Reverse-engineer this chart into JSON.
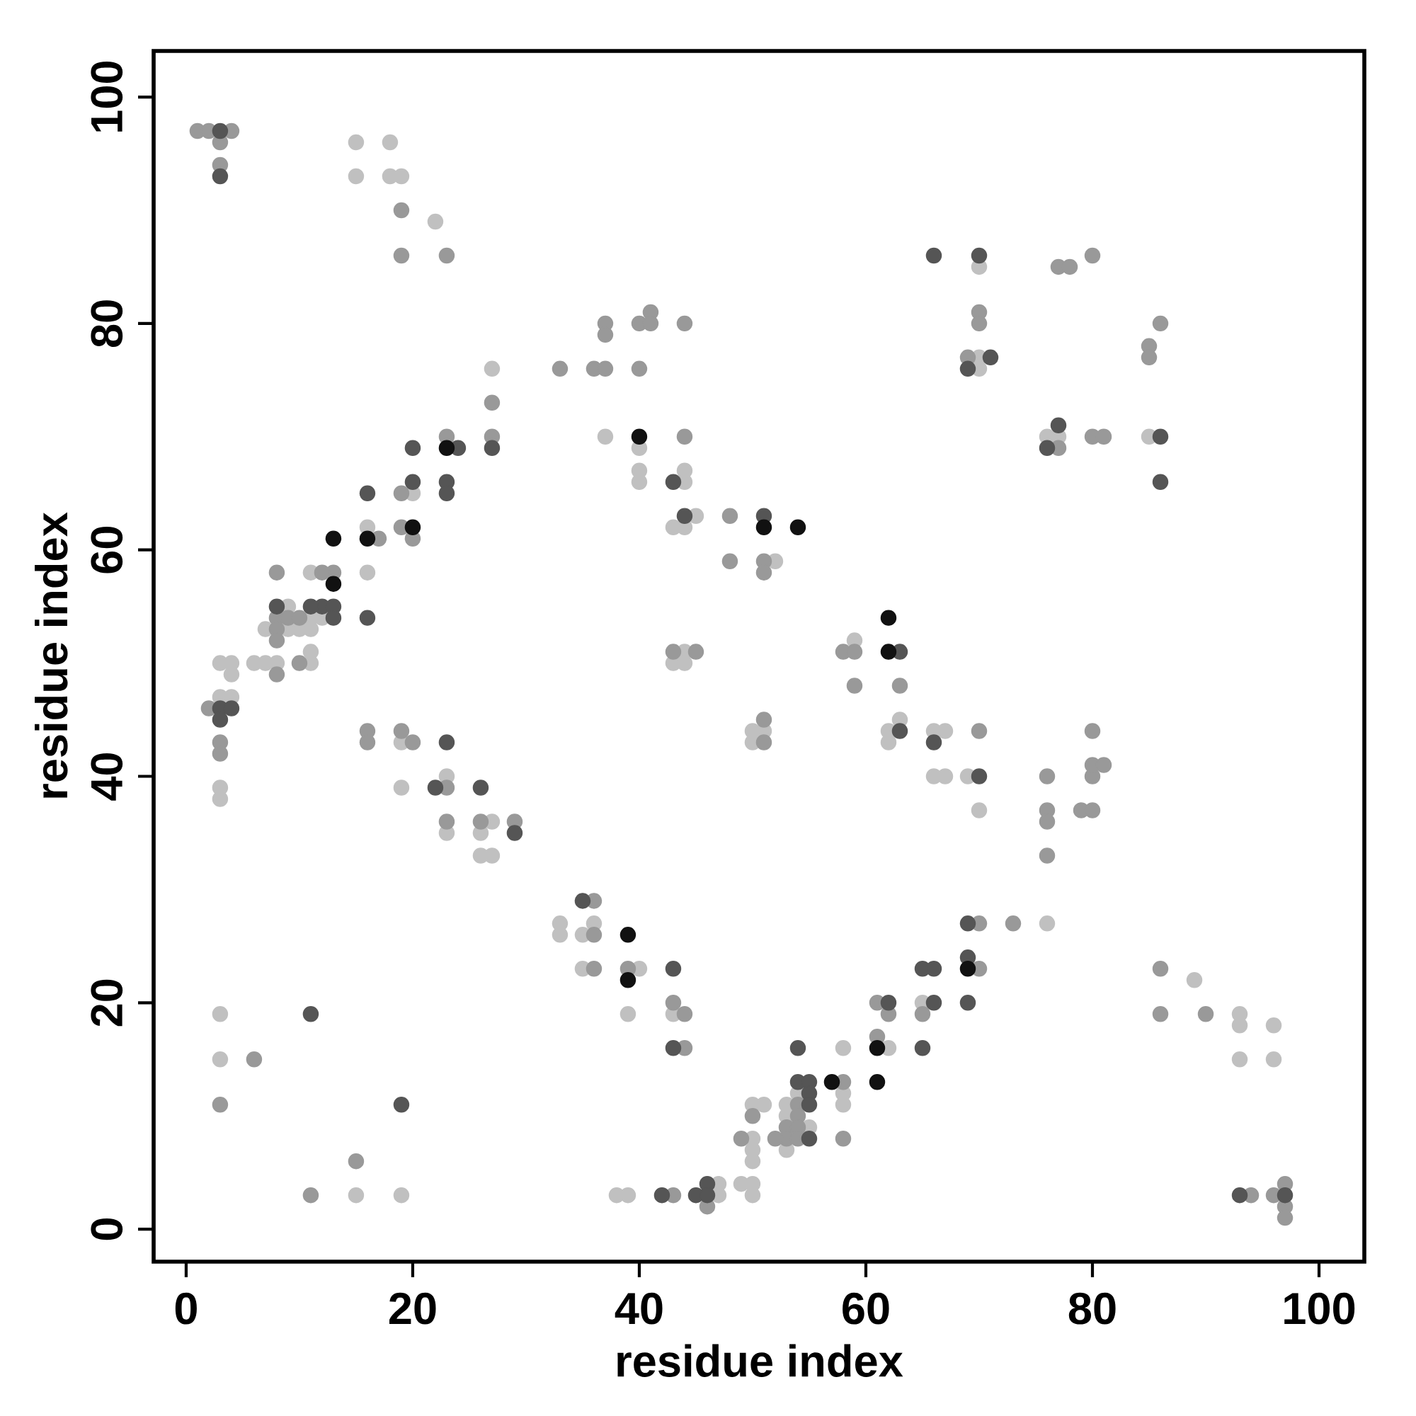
{
  "chart_data": {
    "type": "scatter",
    "xlabel": "residue index",
    "ylabel": "residue index",
    "xlim": [
      -2.87,
      104
    ],
    "ylim": [
      -2.87,
      104.07
    ],
    "xticks": [
      0,
      20,
      40,
      60,
      80,
      100
    ],
    "yticks": [
      0,
      20,
      40,
      60,
      80,
      100
    ],
    "marker": "circle",
    "series": [
      {
        "color": "#c0c0c0",
        "x": [
          15,
          18,
          15,
          18,
          19,
          22,
          70,
          70,
          70,
          76,
          77,
          85,
          27,
          37,
          40,
          40,
          40,
          44,
          44,
          20,
          16,
          16,
          11,
          9,
          11,
          12,
          7,
          9,
          10,
          11,
          11,
          11,
          8,
          6,
          7,
          3,
          4,
          4,
          3,
          4,
          3,
          3,
          43,
          44,
          45,
          52,
          44,
          43,
          44,
          59,
          63,
          62,
          62,
          50,
          51,
          50,
          19,
          19,
          23,
          23,
          27,
          26,
          26,
          27,
          66,
          67,
          66,
          67,
          69,
          70,
          33,
          33,
          35,
          36,
          35,
          40,
          39,
          43,
          76,
          65,
          62,
          58,
          58,
          58,
          54,
          53,
          53,
          55,
          53,
          50,
          51,
          50,
          50,
          50,
          49,
          50,
          50,
          47,
          47,
          38,
          39,
          89,
          93,
          93,
          96,
          93,
          96,
          3,
          3,
          15,
          19
        ],
        "values": [
          96,
          96,
          93,
          93,
          93,
          89,
          85,
          77,
          76,
          70,
          70,
          70,
          76,
          70,
          69,
          67,
          66,
          67,
          66,
          65,
          62,
          58,
          58,
          55,
          54,
          54,
          53,
          53,
          53,
          53,
          51,
          50,
          50,
          50,
          50,
          50,
          50,
          49,
          47,
          47,
          39,
          38,
          62,
          62,
          63,
          59,
          51,
          50,
          50,
          52,
          45,
          44,
          43,
          44,
          44,
          43,
          43,
          39,
          40,
          35,
          36,
          35,
          33,
          33,
          44,
          44,
          40,
          40,
          40,
          37,
          27,
          26,
          26,
          27,
          23,
          23,
          19,
          19,
          27,
          20,
          16,
          16,
          12,
          11,
          12,
          11,
          10,
          9,
          7,
          11,
          11,
          8,
          7,
          6,
          4,
          4,
          3,
          4,
          3,
          3,
          3,
          22,
          19,
          18,
          18,
          15,
          15,
          19,
          15,
          3,
          3
        ]
      },
      {
        "color": "#999999",
        "x": [
          1,
          2,
          4,
          3,
          3,
          19,
          19,
          23,
          77,
          78,
          80,
          70,
          70,
          69,
          85,
          85,
          86,
          77,
          80,
          81,
          33,
          36,
          37,
          37,
          37,
          40,
          41,
          41,
          44,
          40,
          27,
          27,
          44,
          23,
          19,
          19,
          20,
          17,
          13,
          12,
          8,
          8,
          9,
          10,
          8,
          8,
          10,
          8,
          2,
          3,
          3,
          48,
          48,
          51,
          51,
          43,
          45,
          58,
          59,
          59,
          63,
          51,
          51,
          16,
          16,
          19,
          20,
          23,
          23,
          26,
          29,
          70,
          76,
          76,
          76,
          76,
          79,
          80,
          80,
          80,
          81,
          80,
          36,
          36,
          36,
          39,
          43,
          44,
          44,
          70,
          73,
          70,
          65,
          61,
          62,
          61,
          58,
          58,
          54,
          54,
          53,
          54,
          53,
          52,
          54,
          50,
          49,
          46,
          43,
          86,
          86,
          90,
          94,
          96,
          97,
          97,
          97,
          6,
          3,
          15,
          11
        ],
        "values": [
          97,
          97,
          97,
          96,
          94,
          90,
          86,
          86,
          85,
          85,
          86,
          81,
          80,
          77,
          78,
          77,
          80,
          69,
          70,
          70,
          76,
          76,
          76,
          80,
          79,
          80,
          81,
          80,
          80,
          76,
          73,
          70,
          70,
          70,
          65,
          62,
          61,
          61,
          58,
          58,
          58,
          54,
          54,
          54,
          53,
          52,
          50,
          49,
          46,
          43,
          42,
          63,
          59,
          59,
          58,
          51,
          51,
          51,
          51,
          48,
          48,
          45,
          43,
          44,
          43,
          44,
          43,
          39,
          36,
          36,
          36,
          44,
          40,
          37,
          36,
          33,
          37,
          37,
          40,
          41,
          41,
          44,
          29,
          26,
          23,
          23,
          20,
          19,
          16,
          27,
          27,
          23,
          19,
          20,
          19,
          17,
          13,
          8,
          11,
          10,
          9,
          9,
          8,
          8,
          8,
          10,
          8,
          2,
          3,
          23,
          19,
          19,
          3,
          3,
          4,
          2,
          1,
          15,
          11,
          6,
          3
        ]
      },
      {
        "color": "#555555",
        "x": [
          3,
          3,
          66,
          70,
          71,
          69,
          77,
          76,
          86,
          86,
          27,
          43,
          24,
          23,
          23,
          20,
          20,
          16,
          16,
          8,
          12,
          11,
          13,
          13,
          3,
          4,
          3,
          44,
          51,
          63,
          63,
          23,
          22,
          26,
          29,
          66,
          70,
          35,
          43,
          43,
          69,
          69,
          65,
          66,
          69,
          66,
          65,
          62,
          54,
          54,
          55,
          55,
          55,
          55,
          46,
          45,
          46,
          42,
          93,
          97,
          11,
          19
        ],
        "values": [
          97,
          93,
          86,
          86,
          77,
          76,
          71,
          69,
          70,
          66,
          69,
          66,
          69,
          66,
          65,
          69,
          66,
          65,
          54,
          55,
          55,
          55,
          55,
          54,
          46,
          46,
          45,
          63,
          63,
          51,
          44,
          43,
          39,
          39,
          35,
          43,
          40,
          29,
          23,
          16,
          27,
          24,
          23,
          23,
          20,
          20,
          16,
          20,
          16,
          13,
          13,
          12,
          11,
          8,
          4,
          3,
          3,
          3,
          3,
          3,
          19,
          11
        ]
      },
      {
        "color": "#111111",
        "x": [
          40,
          23,
          20,
          16,
          13,
          13,
          51,
          54,
          62,
          62,
          39,
          39,
          69,
          61,
          61,
          57
        ],
        "values": [
          70,
          69,
          62,
          61,
          61,
          57,
          62,
          62,
          54,
          51,
          26,
          22,
          23,
          16,
          13,
          13
        ]
      }
    ]
  }
}
